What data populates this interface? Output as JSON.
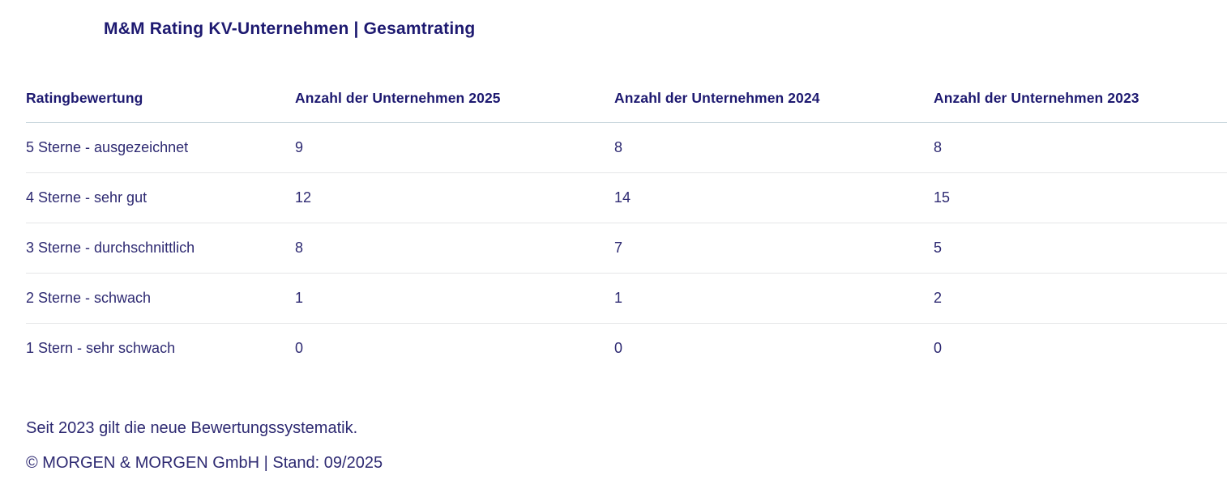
{
  "header": {
    "title": "M&M Rating KV-Unternehmen | Gesamtrating"
  },
  "table": {
    "columns": [
      "Ratingbewertung",
      "Anzahl der Unternehmen 2025",
      "Anzahl der Unternehmen 2024",
      "Anzahl der Unternehmen 2023"
    ],
    "rows": [
      {
        "label": "5 Sterne - ausgezeichnet",
        "count_2025": "9",
        "count_2024": "8",
        "count_2023": "8"
      },
      {
        "label": "4 Sterne - sehr gut",
        "count_2025": "12",
        "count_2024": "14",
        "count_2023": "15"
      },
      {
        "label": "3 Sterne - durchschnittlich",
        "count_2025": "8",
        "count_2024": "7",
        "count_2023": "5"
      },
      {
        "label": "2 Sterne - schwach",
        "count_2025": "1",
        "count_2024": "1",
        "count_2023": "2"
      },
      {
        "label": "1 Stern - sehr schwach",
        "count_2025": "0",
        "count_2024": "0",
        "count_2023": "0"
      }
    ]
  },
  "footer": {
    "note": "Seit 2023 gilt die neue Bewertungssystematik.",
    "copyright": "© MORGEN & MORGEN GmbH | Stand: 09/2025"
  },
  "colors": {
    "title_navy": "#1d1970",
    "body_indigo": "#2e2a72",
    "header_border": "#c4d3da",
    "row_border": "#e5e6e8",
    "background": "#ffffff"
  },
  "chart_data": {
    "type": "table",
    "title": "M&M Rating KV-Unternehmen | Gesamtrating",
    "categories": [
      "5 Sterne - ausgezeichnet",
      "4 Sterne - sehr gut",
      "3 Sterne - durchschnittlich",
      "2 Sterne - schwach",
      "1 Stern - sehr schwach"
    ],
    "series": [
      {
        "name": "Anzahl der Unternehmen 2025",
        "values": [
          9,
          12,
          8,
          1,
          0
        ]
      },
      {
        "name": "Anzahl der Unternehmen 2024",
        "values": [
          8,
          14,
          7,
          1,
          0
        ]
      },
      {
        "name": "Anzahl der Unternehmen 2023",
        "values": [
          8,
          15,
          5,
          2,
          0
        ]
      }
    ],
    "annotations": [
      "Seit 2023 gilt die neue Bewertungssystematik.",
      "© MORGEN & MORGEN GmbH | Stand: 09/2025"
    ],
    "legend_position": "none",
    "grid": "horizontal-row-separators"
  }
}
